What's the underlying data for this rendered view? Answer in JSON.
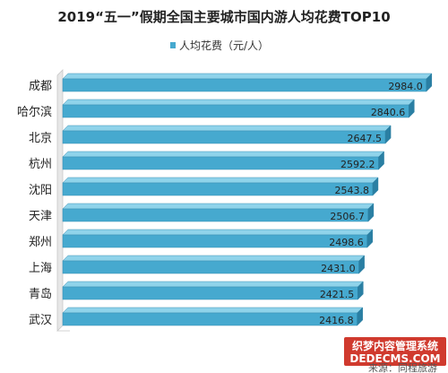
{
  "chart_data": {
    "type": "bar",
    "orientation": "horizontal",
    "title": "2019“五一”假期全国主要城市国内游人均花费TOP10",
    "categories": [
      "成都",
      "哈尔滨",
      "北京",
      "杭州",
      "沈阳",
      "天津",
      "郑州",
      "上海",
      "青岛",
      "武汉"
    ],
    "series": [
      {
        "name": "人均花费（元/人）",
        "values": [
          2984.0,
          2840.6,
          2647.5,
          2592.2,
          2543.8,
          2506.7,
          2498.6,
          2431.0,
          2421.5,
          2416.8
        ],
        "labels": [
          "2984.0",
          "2840.6",
          "2647.5",
          "2592.2",
          "2543.8",
          "2506.7",
          "2498.6",
          "2431.0",
          "2421.5",
          "2416.8"
        ]
      }
    ],
    "xlim": [
      0,
      3000
    ],
    "grid": false,
    "legend": "top-center",
    "colors": {
      "bar_front": "#46a9cf",
      "bar_top": "#8fd3ea",
      "bar_right": "#2a7fa3",
      "axis_wall": "#e6e6e6"
    }
  },
  "source": "来源：同程旅游",
  "watermark": {
    "line1": "织梦内容管理系统",
    "line2": "DEDECMS.COM"
  }
}
